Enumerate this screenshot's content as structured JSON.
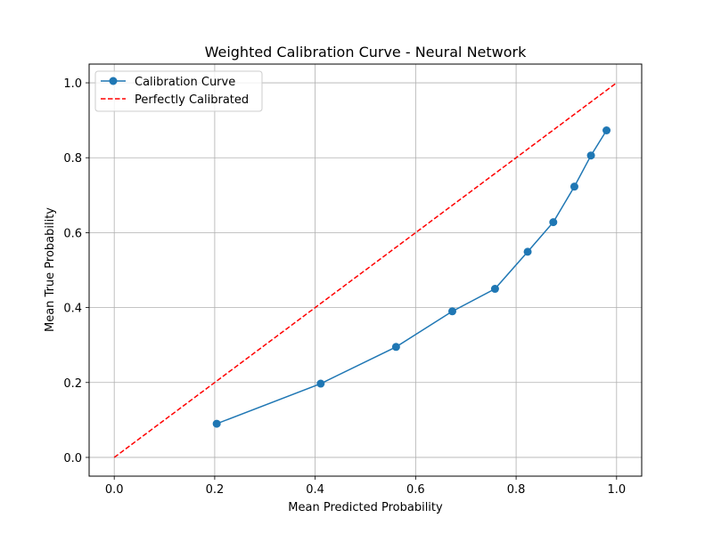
{
  "chart_data": {
    "type": "line",
    "title": "Weighted Calibration Curve - Neural Network",
    "xlabel": "Mean Predicted Probability",
    "ylabel": "Mean True Probability",
    "xlim": [
      -0.05,
      1.05
    ],
    "ylim": [
      -0.05,
      1.05
    ],
    "xticks": [
      "0.0",
      "0.2",
      "0.4",
      "0.6",
      "0.8",
      "1.0"
    ],
    "yticks": [
      "0.0",
      "0.2",
      "0.4",
      "0.6",
      "0.8",
      "1.0"
    ],
    "grid": true,
    "legend_position": "top-left",
    "series": [
      {
        "name": "Calibration Curve",
        "color": "#1f77b4",
        "style": "solid-with-circle-markers",
        "x": [
          0.204,
          0.411,
          0.561,
          0.673,
          0.758,
          0.823,
          0.874,
          0.916,
          0.949,
          0.98
        ],
        "y": [
          0.09,
          0.197,
          0.295,
          0.39,
          0.45,
          0.549,
          0.628,
          0.723,
          0.806,
          0.873
        ]
      },
      {
        "name": "Perfectly Calibrated",
        "color": "#ff0000",
        "style": "dashed",
        "x": [
          0.0,
          1.0
        ],
        "y": [
          0.0,
          1.0
        ]
      }
    ]
  }
}
